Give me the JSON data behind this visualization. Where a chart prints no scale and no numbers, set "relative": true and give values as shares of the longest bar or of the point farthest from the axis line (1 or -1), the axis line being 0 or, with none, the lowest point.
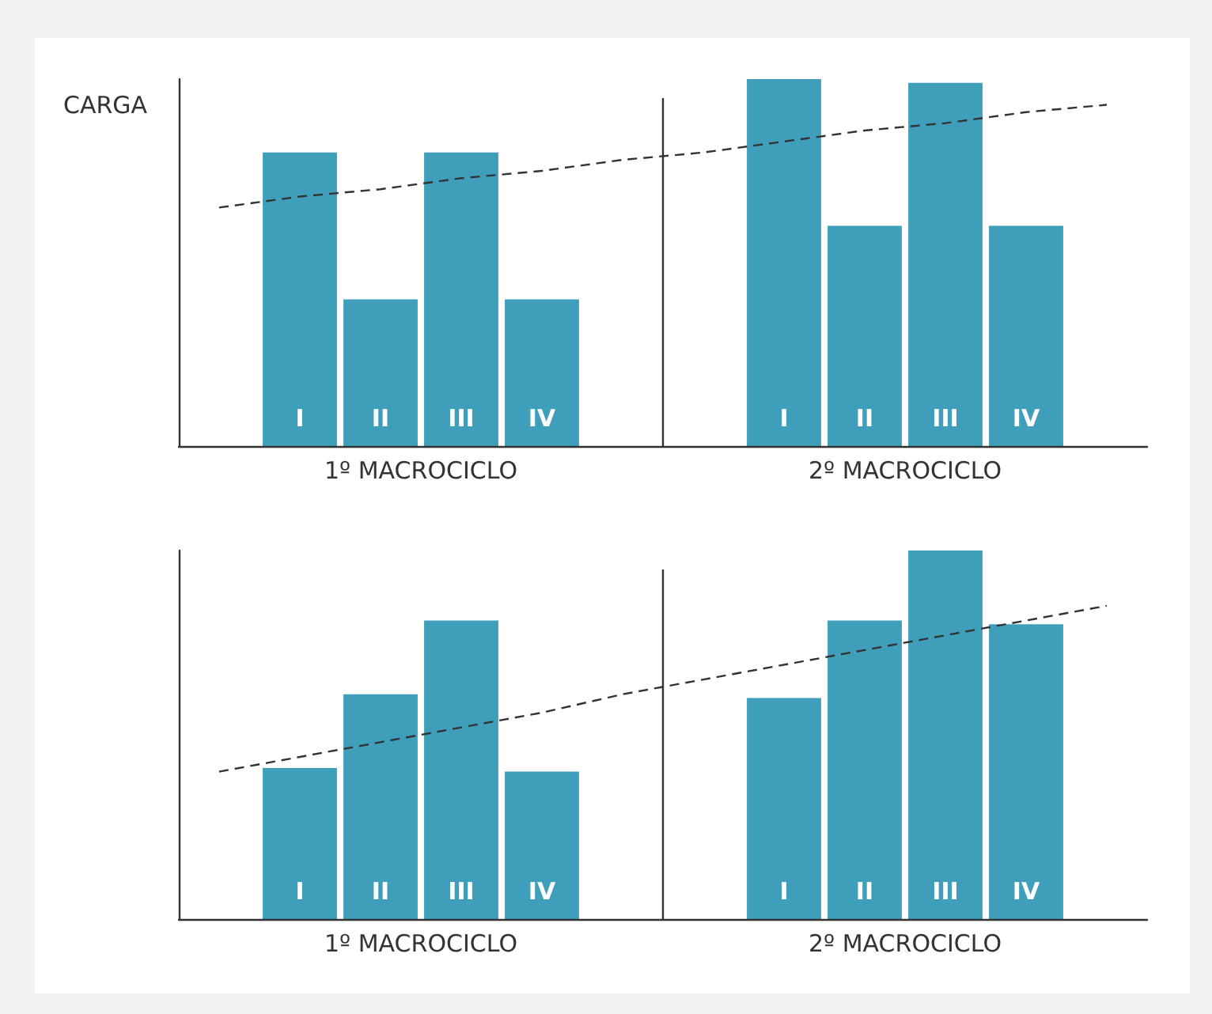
{
  "chart_data": [
    {
      "type": "bar",
      "relative": true,
      "ylabel": "CARGA",
      "categories": [
        null,
        "I",
        "II",
        "III",
        "IV",
        null,
        null,
        "I",
        "II",
        "III",
        "IV",
        null
      ],
      "annotations": [
        "1º MACROCICLO",
        "2º MACROCICLO"
      ],
      "grid": false,
      "series": [
        {
          "color": "#3f9fba",
          "values": [
            null,
            0.8,
            0.4,
            0.8,
            0.4,
            null,
            null,
            1,
            0.6,
            0.99,
            0.6,
            null
          ]
        },
        {
          "type": "line",
          "color": "#333333",
          "line_style": "dashed",
          "marker": "none",
          "values": [
            0.65,
            0.68,
            0.7,
            0.73,
            0.75,
            0.78,
            0.8,
            0.83,
            0.86,
            0.88,
            0.91,
            0.93
          ]
        }
      ]
    },
    {
      "type": "bar",
      "relative": true,
      "categories": [
        null,
        "I",
        "II",
        "III",
        "IV",
        null,
        null,
        "I",
        "II",
        "III",
        "IV",
        null
      ],
      "annotations": [
        "1º MACROCICLO",
        "2º MACROCICLO"
      ],
      "grid": false,
      "series": [
        {
          "color": "#3f9fba",
          "values": [
            null,
            0.41,
            0.61,
            0.81,
            0.4,
            null,
            null,
            0.6,
            0.81,
            1,
            0.8,
            null
          ]
        },
        {
          "type": "line",
          "color": "#333333",
          "line_style": "dashed",
          "marker": "none",
          "values": [
            0.4,
            0.44,
            0.48,
            0.52,
            0.56,
            0.61,
            0.65,
            0.69,
            0.73,
            0.77,
            0.81,
            0.85
          ]
        }
      ]
    }
  ]
}
